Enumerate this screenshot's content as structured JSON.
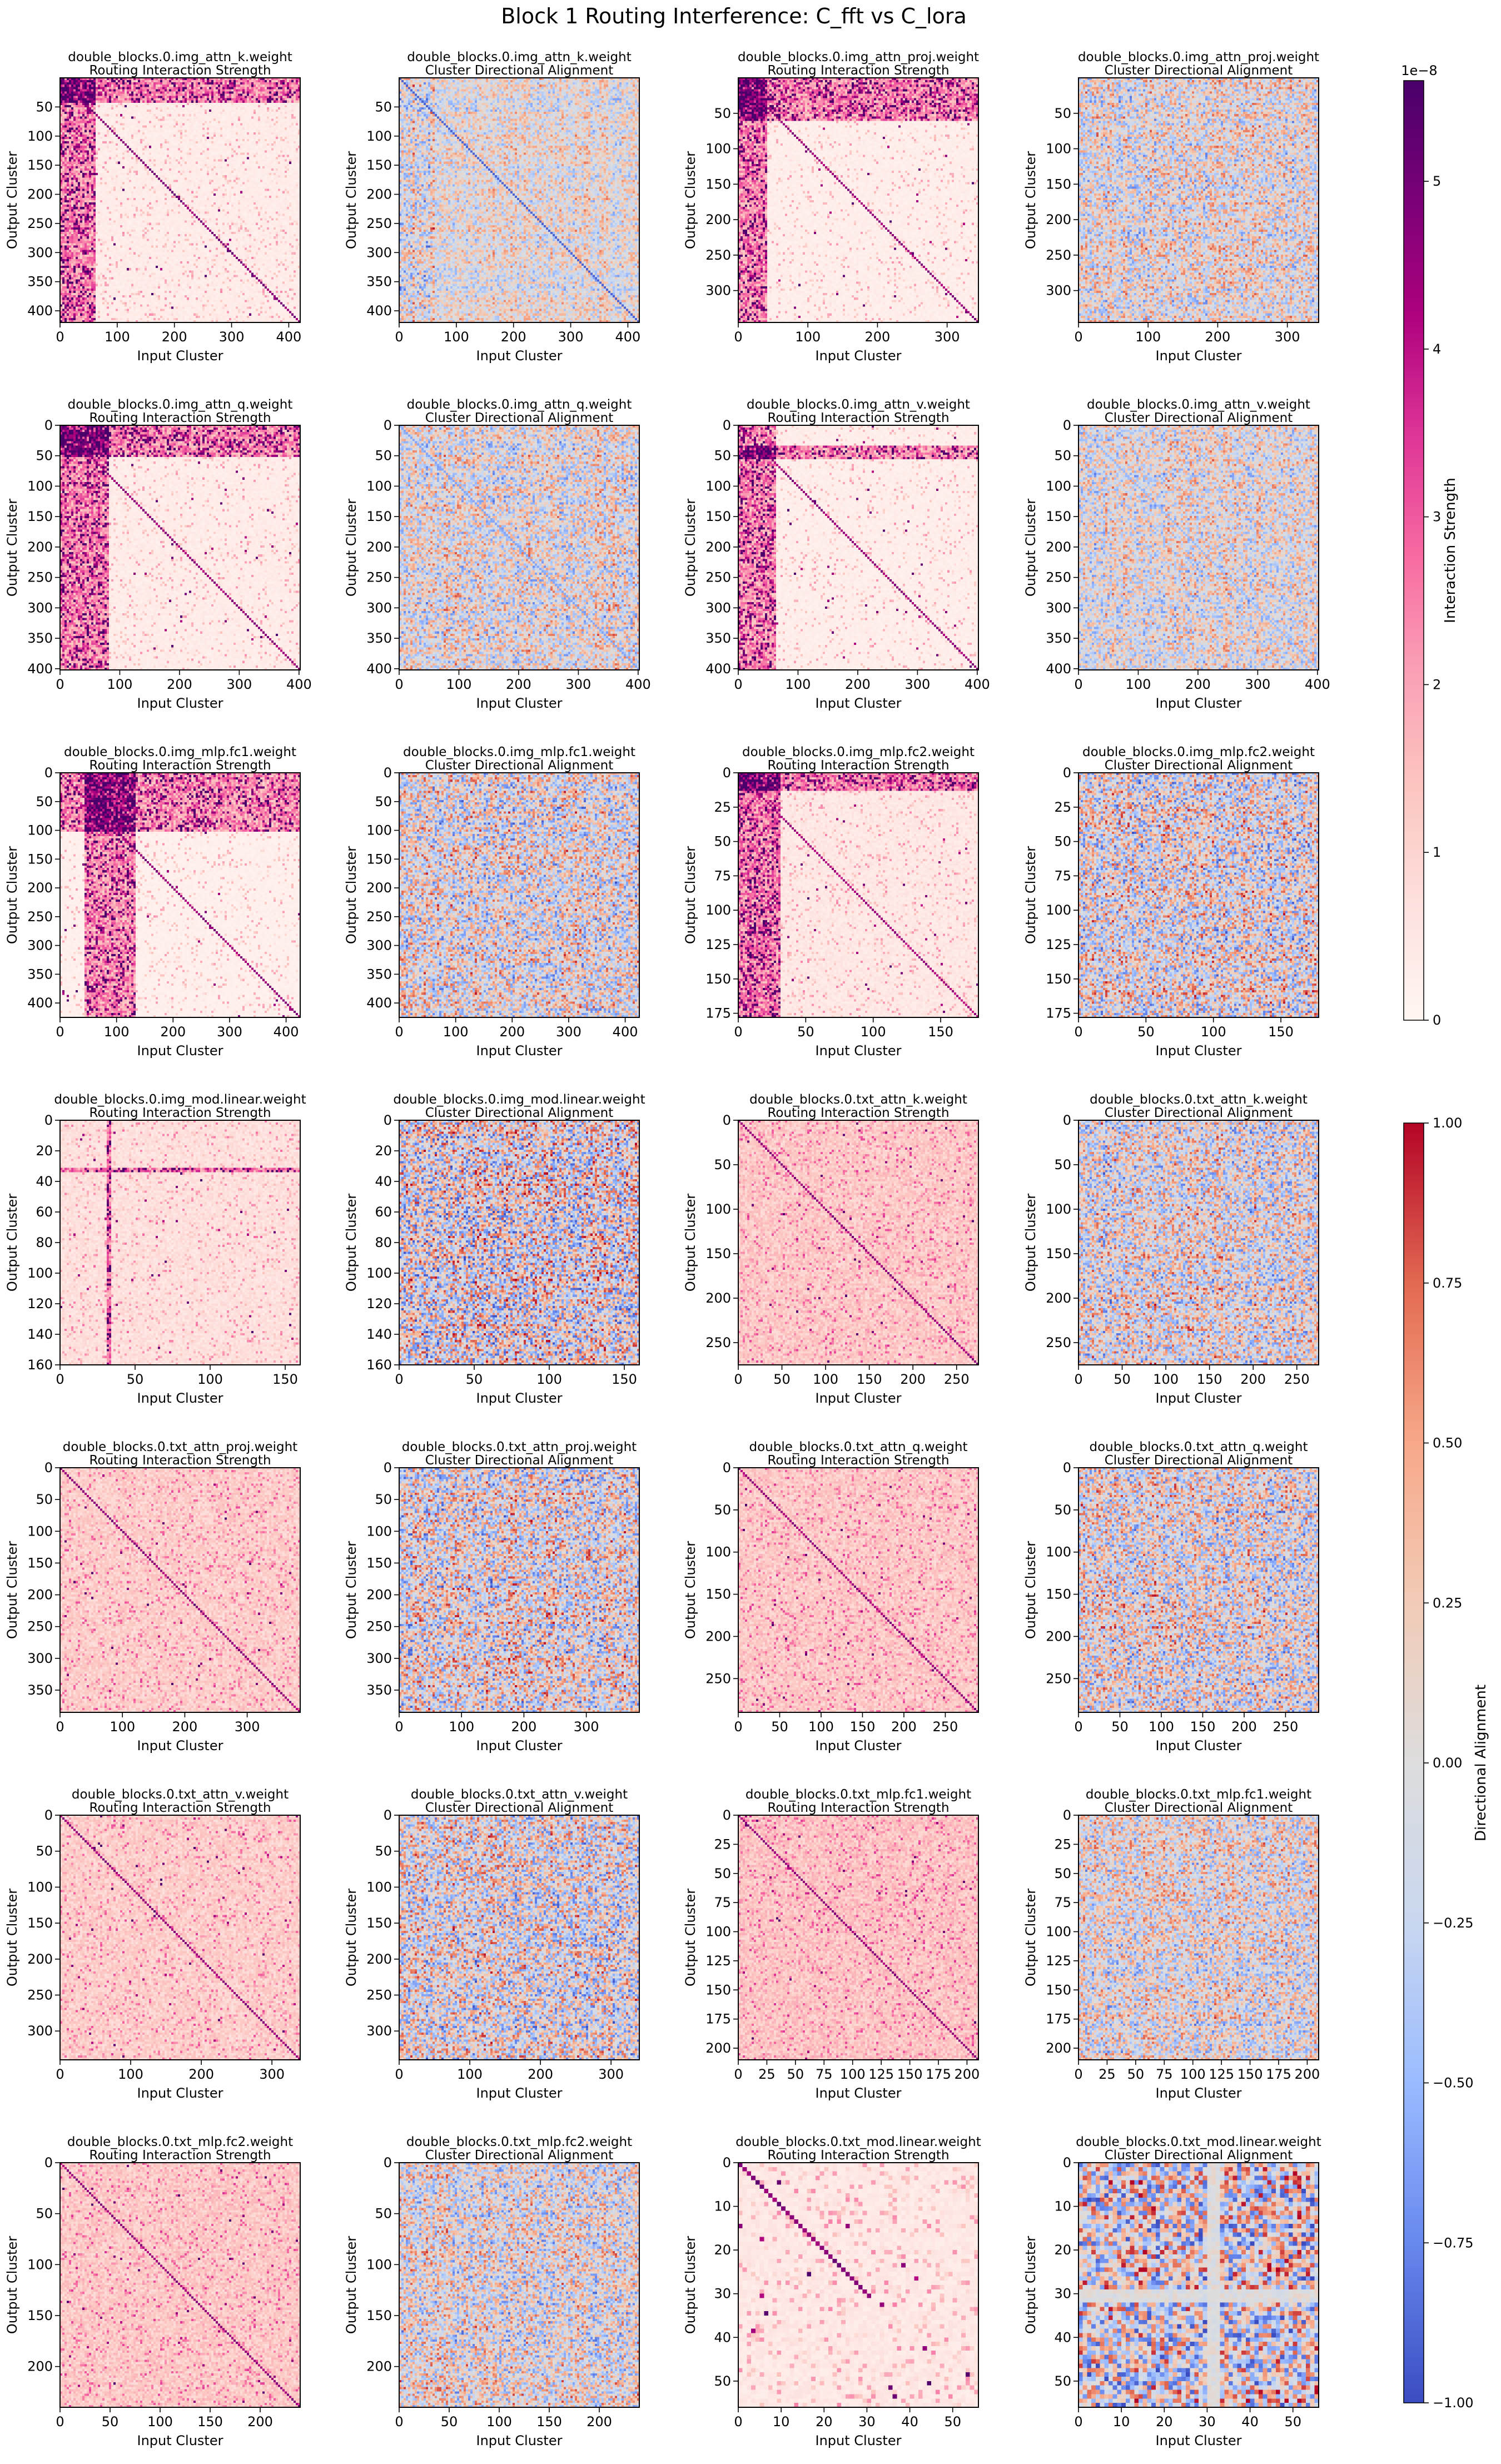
{
  "figure": {
    "title": "Block 1 Routing Interference: C_fft vs C_lora",
    "xlabel": "Input Cluster",
    "ylabel": "Output Cluster"
  },
  "colorbars": {
    "strength": {
      "label": "Interaction Strength",
      "exponent": "1e−8",
      "ticks": [
        "0",
        "1",
        "2",
        "3",
        "4",
        "5"
      ],
      "tick_values": [
        0,
        1,
        2,
        3,
        4,
        5
      ],
      "range": [
        0,
        5.6
      ],
      "colormap": "RdPu",
      "stops": [
        "#fff7f3",
        "#fde0dd",
        "#fcc5c0",
        "#fa9fb5",
        "#f768a1",
        "#dd3497",
        "#ae017e",
        "#7a0177",
        "#49006a"
      ]
    },
    "alignment": {
      "label": "Directional Alignment",
      "ticks": [
        "1.00",
        "0.75",
        "0.50",
        "0.25",
        "0.00",
        "−0.25",
        "−0.50",
        "−0.75",
        "−1.00"
      ],
      "tick_values": [
        1.0,
        0.75,
        0.5,
        0.25,
        0.0,
        -0.25,
        -0.5,
        -0.75,
        -1.0
      ],
      "range": [
        -1,
        1
      ],
      "colormap": "coolwarm",
      "stops": [
        "#3b4cc0",
        "#6788ee",
        "#9abbff",
        "#c9d7f0",
        "#dddddd",
        "#f2cbb7",
        "#f7a889",
        "#e26952",
        "#b40426"
      ]
    }
  },
  "panel_kinds": {
    "strength": "Routing Interaction Strength",
    "alignment": "Cluster Directional Alignment"
  },
  "chart_data": [
    {
      "type": "heatmap",
      "title": "double_blocks.0.img_attn_k.weight",
      "subtitle": "Routing Interaction Strength",
      "kind": "strength",
      "size": 420,
      "xticks": [
        0,
        100,
        200,
        300,
        400
      ],
      "yticks": [
        50,
        100,
        150,
        200,
        250,
        300,
        350,
        400
      ],
      "pattern": {
        "diag": 0.95,
        "hot_cols": [
          0,
          60
        ],
        "hot_rows": [
          0,
          40
        ],
        "bg": 0.06,
        "noise": 0.25
      }
    },
    {
      "type": "heatmap",
      "title": "double_blocks.0.img_attn_k.weight",
      "subtitle": "Cluster Directional Alignment",
      "kind": "alignment",
      "size": 420,
      "xticks": [
        0,
        100,
        200,
        300,
        400
      ],
      "yticks": [
        50,
        100,
        150,
        200,
        250,
        300,
        350,
        400
      ],
      "pattern": {
        "diag": -0.9,
        "noise": 0.45,
        "dense_cols": [
          0,
          60
        ]
      }
    },
    {
      "type": "heatmap",
      "title": "double_blocks.0.img_attn_proj.weight",
      "subtitle": "Routing Interaction Strength",
      "kind": "strength",
      "size": 345,
      "xticks": [
        0,
        100,
        200,
        300
      ],
      "yticks": [
        50,
        100,
        150,
        200,
        250,
        300
      ],
      "pattern": {
        "diag": 0.9,
        "hot_cols": [
          0,
          40
        ],
        "hot_rows": [
          0,
          60
        ],
        "bg": 0.05,
        "noise": 0.2
      }
    },
    {
      "type": "heatmap",
      "title": "double_blocks.0.img_attn_proj.weight",
      "subtitle": "Cluster Directional Alignment",
      "kind": "alignment",
      "size": 345,
      "xticks": [
        0,
        100,
        200,
        300
      ],
      "yticks": [
        50,
        100,
        150,
        200,
        250,
        300
      ],
      "pattern": {
        "diag": 0,
        "noise": 0.6
      }
    },
    {
      "type": "heatmap",
      "title": "double_blocks.0.img_attn_q.weight",
      "subtitle": "Routing Interaction Strength",
      "kind": "strength",
      "size": 402,
      "xticks": [
        0,
        100,
        200,
        300,
        400
      ],
      "yticks": [
        0,
        50,
        100,
        150,
        200,
        250,
        300,
        350,
        400
      ],
      "pattern": {
        "diag": 0.9,
        "hot_cols": [
          0,
          80
        ],
        "hot_rows": [
          0,
          50
        ],
        "bg": 0.06,
        "noise": 0.22
      }
    },
    {
      "type": "heatmap",
      "title": "double_blocks.0.img_attn_q.weight",
      "subtitle": "Cluster Directional Alignment",
      "kind": "alignment",
      "size": 402,
      "xticks": [
        0,
        100,
        200,
        300,
        400
      ],
      "yticks": [
        0,
        50,
        100,
        150,
        200,
        250,
        300,
        350,
        400
      ],
      "pattern": {
        "diag": -0.6,
        "noise": 0.6
      }
    },
    {
      "type": "heatmap",
      "title": "double_blocks.0.img_attn_v.weight",
      "subtitle": "Routing Interaction Strength",
      "kind": "strength",
      "size": 402,
      "xticks": [
        0,
        100,
        200,
        300,
        400
      ],
      "yticks": [
        0,
        50,
        100,
        150,
        200,
        250,
        300,
        350,
        400
      ],
      "pattern": {
        "diag": 0.9,
        "hot_cols": [
          0,
          60
        ],
        "hot_rows": [
          30,
          55
        ],
        "bg": 0.05,
        "noise": 0.2
      }
    },
    {
      "type": "heatmap",
      "title": "double_blocks.0.img_attn_v.weight",
      "subtitle": "Cluster Directional Alignment",
      "kind": "alignment",
      "size": 402,
      "xticks": [
        0,
        100,
        200,
        300,
        400
      ],
      "yticks": [
        0,
        50,
        100,
        150,
        200,
        250,
        300,
        350,
        400
      ],
      "pattern": {
        "diag": -0.5,
        "noise": 0.55
      }
    },
    {
      "type": "heatmap",
      "title": "double_blocks.0.img_mlp.fc1.weight",
      "subtitle": "Routing Interaction Strength",
      "kind": "strength",
      "size": 425,
      "xticks": [
        0,
        100,
        200,
        300,
        400
      ],
      "yticks": [
        0,
        50,
        100,
        150,
        200,
        250,
        300,
        350,
        400
      ],
      "pattern": {
        "diag": 0.9,
        "hot_cols": [
          40,
          130
        ],
        "hot_rows": [
          0,
          100
        ],
        "bg": 0.04,
        "noise": 0.22
      }
    },
    {
      "type": "heatmap",
      "title": "double_blocks.0.img_mlp.fc1.weight",
      "subtitle": "Cluster Directional Alignment",
      "kind": "alignment",
      "size": 425,
      "xticks": [
        0,
        100,
        200,
        300,
        400
      ],
      "yticks": [
        0,
        50,
        100,
        150,
        200,
        250,
        300,
        350,
        400
      ],
      "pattern": {
        "diag": -0.5,
        "noise": 0.7
      }
    },
    {
      "type": "heatmap",
      "title": "double_blocks.0.img_mlp.fc2.weight",
      "subtitle": "Routing Interaction Strength",
      "kind": "strength",
      "size": 178,
      "xticks": [
        0,
        50,
        100,
        150
      ],
      "yticks": [
        0,
        25,
        50,
        75,
        100,
        125,
        150,
        175
      ],
      "pattern": {
        "diag": 0.85,
        "hot_cols": [
          0,
          30
        ],
        "hot_rows": [
          0,
          12
        ],
        "bg": 0.08,
        "noise": 0.25
      }
    },
    {
      "type": "heatmap",
      "title": "double_blocks.0.img_mlp.fc2.weight",
      "subtitle": "Cluster Directional Alignment",
      "kind": "alignment",
      "size": 178,
      "xticks": [
        0,
        50,
        100,
        150
      ],
      "yticks": [
        0,
        25,
        50,
        75,
        100,
        125,
        150,
        175
      ],
      "pattern": {
        "diag": 0,
        "noise": 0.75
      }
    },
    {
      "type": "heatmap",
      "title": "double_blocks.0.img_mod.linear.weight",
      "subtitle": "Routing Interaction Strength",
      "kind": "strength",
      "size": 160,
      "xticks": [
        0,
        50,
        100,
        150
      ],
      "yticks": [
        0,
        20,
        40,
        60,
        80,
        100,
        120,
        140,
        160
      ],
      "pattern": {
        "diag": 0,
        "hot_cols": [
          30,
          34
        ],
        "hot_rows": [
          30,
          34
        ],
        "bg": 0.12,
        "noise": 0.25
      }
    },
    {
      "type": "heatmap",
      "title": "double_blocks.0.img_mod.linear.weight",
      "subtitle": "Cluster Directional Alignment",
      "kind": "alignment",
      "size": 160,
      "xticks": [
        0,
        50,
        100,
        150
      ],
      "yticks": [
        0,
        20,
        40,
        60,
        80,
        100,
        120,
        140,
        160
      ],
      "pattern": {
        "diag": 0,
        "noise": 0.85
      }
    },
    {
      "type": "heatmap",
      "title": "double_blocks.0.txt_attn_k.weight",
      "subtitle": "Routing Interaction Strength",
      "kind": "strength",
      "size": 275,
      "xticks": [
        0,
        50,
        100,
        150,
        200,
        250
      ],
      "yticks": [
        0,
        50,
        100,
        150,
        200,
        250
      ],
      "pattern": {
        "diag": 0.9,
        "bg": 0.22,
        "noise": 0.35
      }
    },
    {
      "type": "heatmap",
      "title": "double_blocks.0.txt_attn_k.weight",
      "subtitle": "Cluster Directional Alignment",
      "kind": "alignment",
      "size": 275,
      "xticks": [
        0,
        50,
        100,
        150,
        200,
        250
      ],
      "yticks": [
        0,
        50,
        100,
        150,
        200,
        250
      ],
      "pattern": {
        "diag": 0,
        "noise": 0.7
      }
    },
    {
      "type": "heatmap",
      "title": "double_blocks.0.txt_attn_proj.weight",
      "subtitle": "Routing Interaction Strength",
      "kind": "strength",
      "size": 385,
      "xticks": [
        0,
        100,
        200,
        300
      ],
      "yticks": [
        0,
        50,
        100,
        150,
        200,
        250,
        300,
        350
      ],
      "pattern": {
        "diag": 0.9,
        "bg": 0.2,
        "noise": 0.35
      }
    },
    {
      "type": "heatmap",
      "title": "double_blocks.0.txt_attn_proj.weight",
      "subtitle": "Cluster Directional Alignment",
      "kind": "alignment",
      "size": 385,
      "xticks": [
        0,
        100,
        200,
        300
      ],
      "yticks": [
        0,
        50,
        100,
        150,
        200,
        250,
        300,
        350
      ],
      "pattern": {
        "diag": 0,
        "noise": 0.75
      }
    },
    {
      "type": "heatmap",
      "title": "double_blocks.0.txt_attn_q.weight",
      "subtitle": "Routing Interaction Strength",
      "kind": "strength",
      "size": 290,
      "xticks": [
        0,
        50,
        100,
        150,
        200,
        250
      ],
      "yticks": [
        0,
        50,
        100,
        150,
        200,
        250
      ],
      "pattern": {
        "diag": 0.9,
        "bg": 0.22,
        "noise": 0.35
      }
    },
    {
      "type": "heatmap",
      "title": "double_blocks.0.txt_attn_q.weight",
      "subtitle": "Cluster Directional Alignment",
      "kind": "alignment",
      "size": 290,
      "xticks": [
        0,
        50,
        100,
        150,
        200,
        250
      ],
      "yticks": [
        0,
        50,
        100,
        150,
        200,
        250
      ],
      "pattern": {
        "diag": 0,
        "noise": 0.72
      }
    },
    {
      "type": "heatmap",
      "title": "double_blocks.0.txt_attn_v.weight",
      "subtitle": "Routing Interaction Strength",
      "kind": "strength",
      "size": 340,
      "xticks": [
        0,
        100,
        200,
        300
      ],
      "yticks": [
        0,
        50,
        100,
        150,
        200,
        250,
        300
      ],
      "pattern": {
        "diag": 0.9,
        "bg": 0.2,
        "noise": 0.33
      }
    },
    {
      "type": "heatmap",
      "title": "double_blocks.0.txt_attn_v.weight",
      "subtitle": "Cluster Directional Alignment",
      "kind": "alignment",
      "size": 340,
      "xticks": [
        0,
        100,
        200,
        300
      ],
      "yticks": [
        0,
        50,
        100,
        150,
        200,
        250,
        300
      ],
      "pattern": {
        "diag": 0,
        "noise": 0.75
      }
    },
    {
      "type": "heatmap",
      "title": "double_blocks.0.txt_mlp.fc1.weight",
      "subtitle": "Routing Interaction Strength",
      "kind": "strength",
      "size": 210,
      "xticks": [
        0,
        25,
        50,
        75,
        100,
        125,
        150,
        175,
        200
      ],
      "yticks": [
        0,
        25,
        50,
        75,
        100,
        125,
        150,
        175,
        200
      ],
      "pattern": {
        "diag": 0.9,
        "bg": 0.24,
        "noise": 0.33
      }
    },
    {
      "type": "heatmap",
      "title": "double_blocks.0.txt_mlp.fc1.weight",
      "subtitle": "Cluster Directional Alignment",
      "kind": "alignment",
      "size": 210,
      "xticks": [
        0,
        25,
        50,
        75,
        100,
        125,
        150,
        175,
        200
      ],
      "yticks": [
        0,
        25,
        50,
        75,
        100,
        125,
        150,
        175,
        200
      ],
      "pattern": {
        "diag": 0,
        "noise": 0.62
      }
    },
    {
      "type": "heatmap",
      "title": "double_blocks.0.txt_mlp.fc2.weight",
      "subtitle": "Routing Interaction Strength",
      "kind": "strength",
      "size": 240,
      "xticks": [
        0,
        50,
        100,
        150,
        200
      ],
      "yticks": [
        0,
        50,
        100,
        150,
        200
      ],
      "pattern": {
        "diag": 0.9,
        "bg": 0.22,
        "noise": 0.33
      }
    },
    {
      "type": "heatmap",
      "title": "double_blocks.0.txt_mlp.fc2.weight",
      "subtitle": "Cluster Directional Alignment",
      "kind": "alignment",
      "size": 240,
      "xticks": [
        0,
        50,
        100,
        150,
        200
      ],
      "yticks": [
        0,
        50,
        100,
        150,
        200
      ],
      "pattern": {
        "diag": 0,
        "noise": 0.65
      }
    },
    {
      "type": "heatmap",
      "title": "double_blocks.0.txt_mod.linear.weight",
      "subtitle": "Routing Interaction Strength",
      "kind": "strength",
      "size": 56,
      "xticks": [
        0,
        10,
        20,
        30,
        40,
        50
      ],
      "yticks": [
        0,
        10,
        20,
        30,
        40,
        50
      ],
      "pattern": {
        "diag": 0.95,
        "diag_end": 30,
        "bg": 0.08,
        "noise": 0.35
      }
    },
    {
      "type": "heatmap",
      "title": "double_blocks.0.txt_mod.linear.weight",
      "subtitle": "Cluster Directional Alignment",
      "kind": "alignment",
      "size": 56,
      "xticks": [
        0,
        10,
        20,
        30,
        40,
        50
      ],
      "yticks": [
        0,
        10,
        20,
        30,
        40,
        50
      ],
      "pattern": {
        "diag": 0,
        "noise": 0.9,
        "light_rows": [
          30
        ],
        "light_cols": [
          31
        ]
      }
    }
  ]
}
